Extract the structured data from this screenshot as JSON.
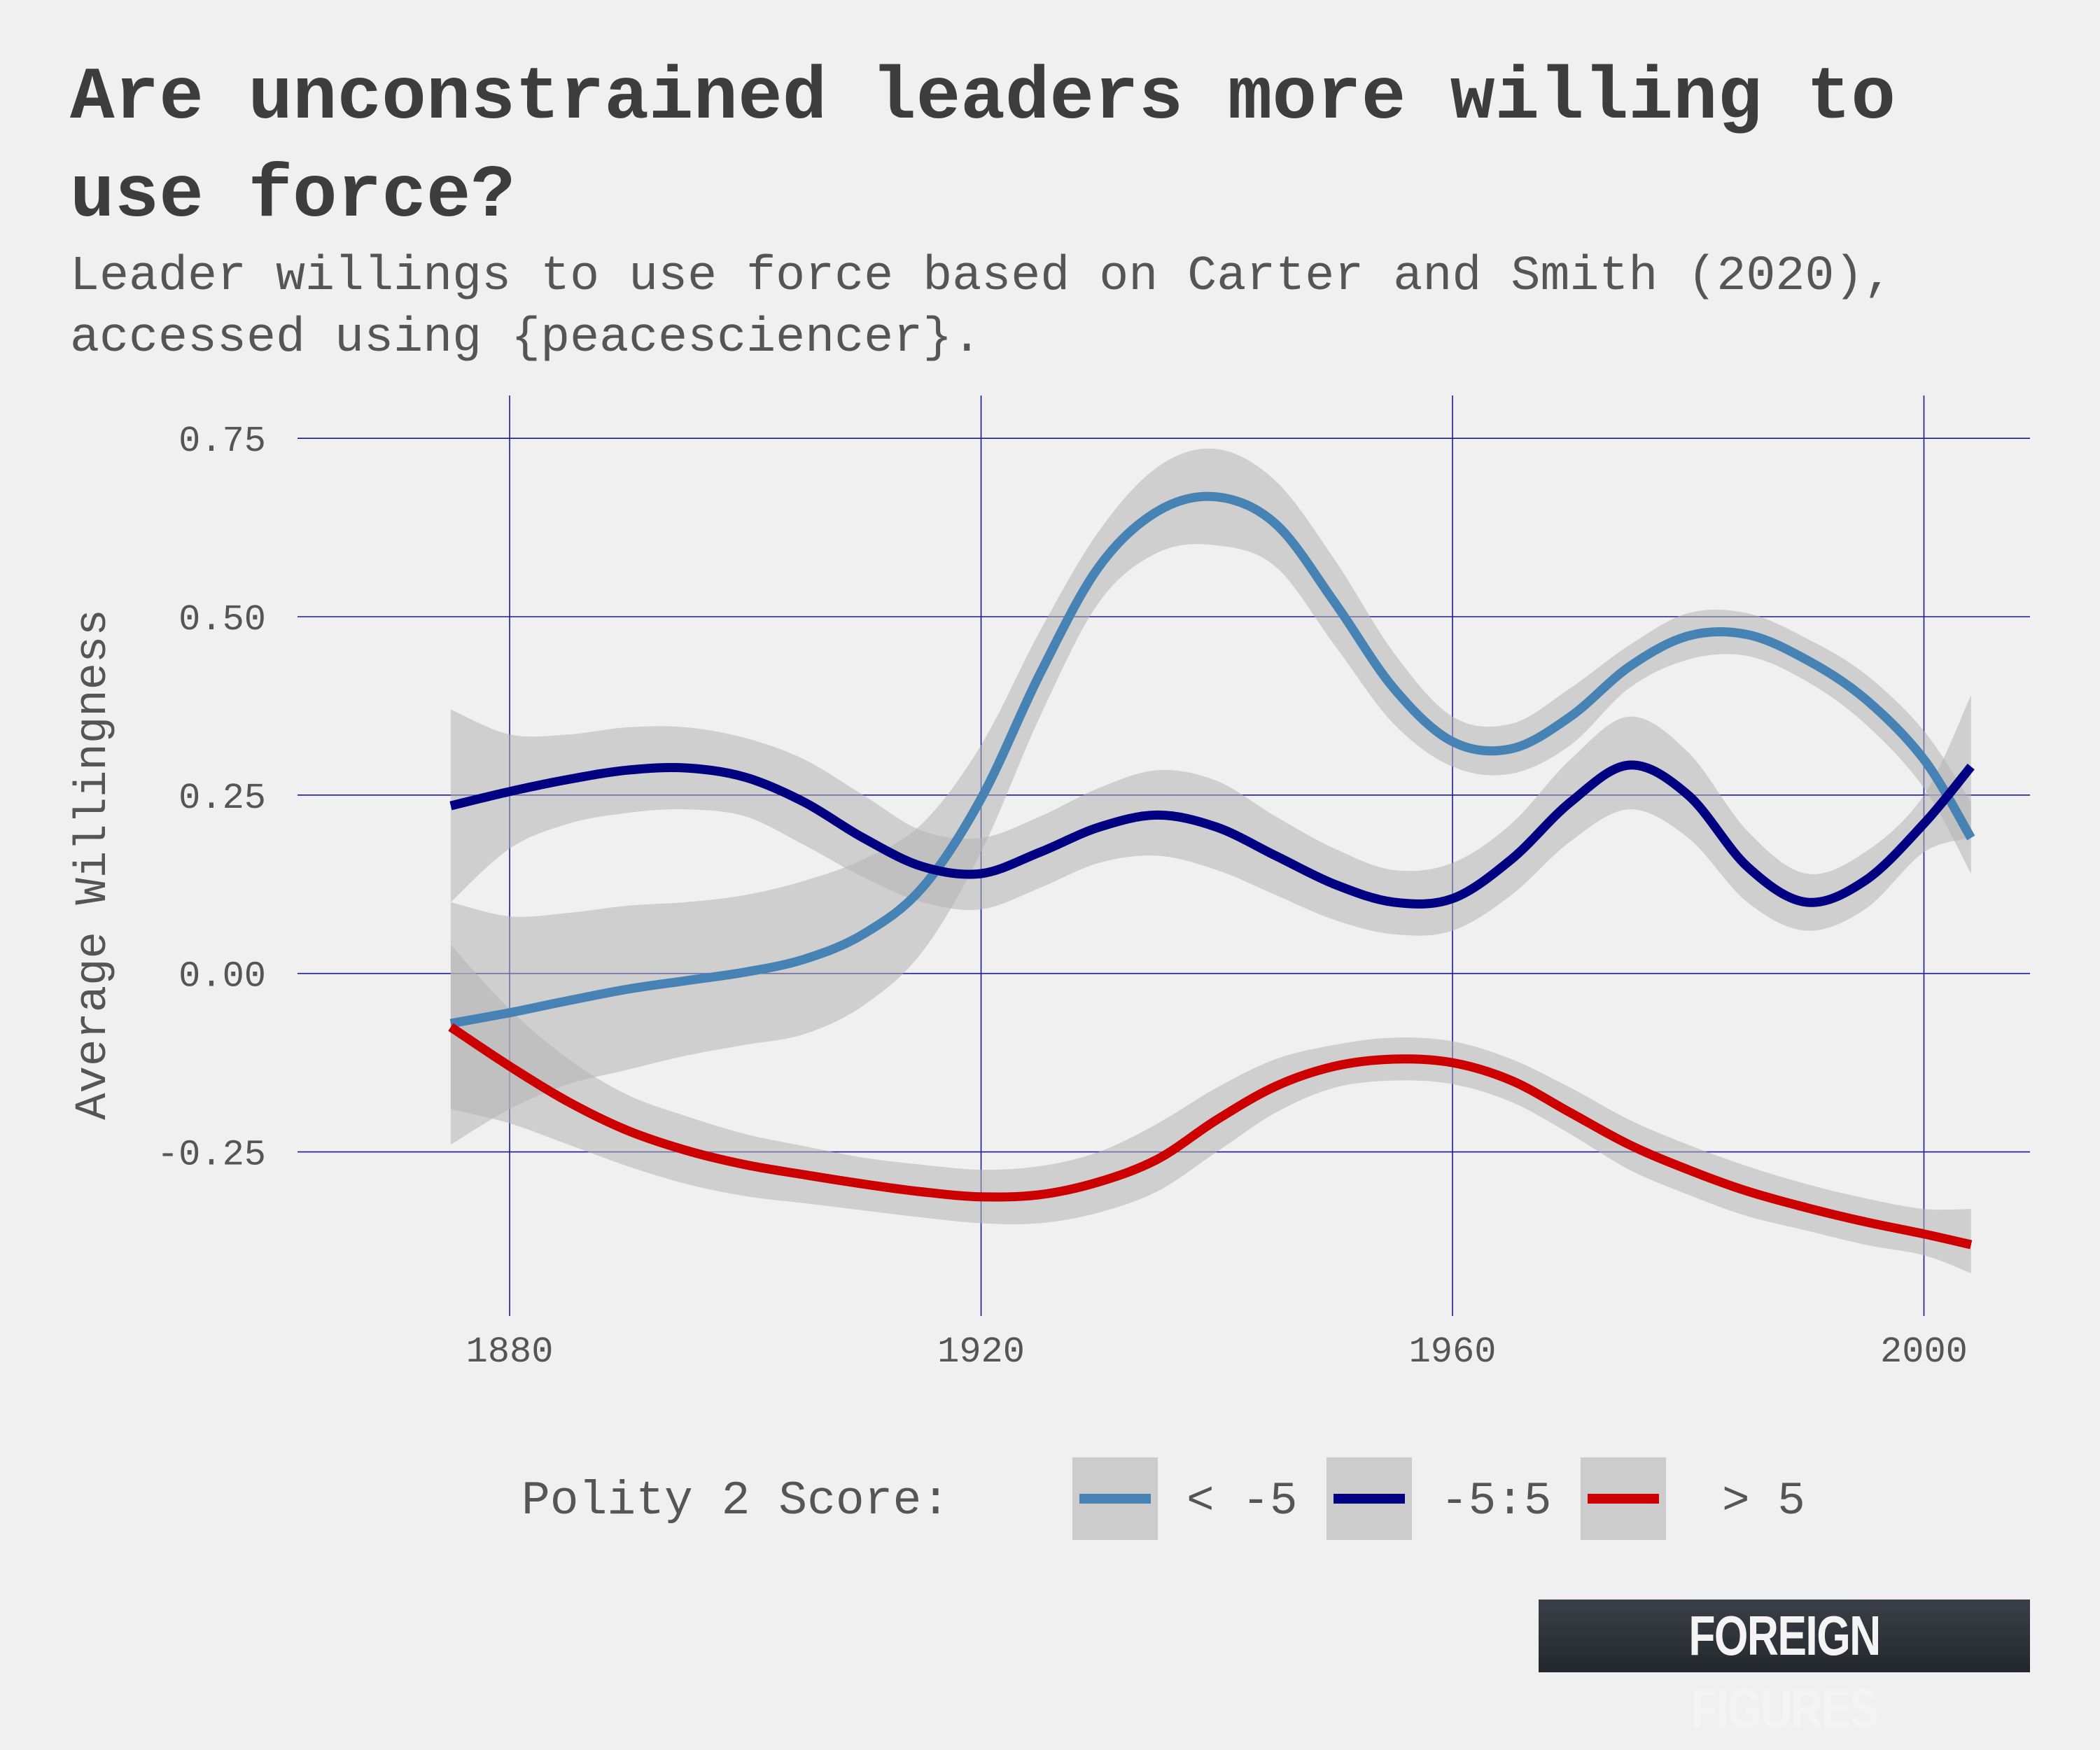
{
  "title": "Are unconstrained leaders more willing to use force?",
  "subtitle": "Leader willings to use force based on Carter and Smith (2020), accessed using {peacesciencer}.",
  "brand": "FOREIGN FIGURES",
  "chart_data": {
    "type": "line",
    "ylabel": "Average Willingness",
    "xlim": [
      1862,
      2009
    ],
    "ylim": [
      -0.48,
      0.81
    ],
    "x_ticks": [
      1880,
      1920,
      1960,
      2000
    ],
    "x_tick_labels": [
      "1880",
      "1920",
      "1960",
      "2000"
    ],
    "y_ticks": [
      -0.25,
      0,
      0.25,
      0.5,
      0.75
    ],
    "y_tick_labels": [
      "-0.25",
      "0.00",
      "0.25",
      "0.50",
      "0.75"
    ],
    "grid": true,
    "legend_title": "Polity 2 Score:",
    "legend_position": "bottom",
    "series": [
      {
        "name": "< -5",
        "color": "#4682b4",
        "points": [
          [
            1875,
            -0.07
          ],
          [
            1880,
            -0.055
          ],
          [
            1885,
            -0.038
          ],
          [
            1890,
            -0.022
          ],
          [
            1895,
            -0.01
          ],
          [
            1900,
            0.002
          ],
          [
            1905,
            0.02
          ],
          [
            1910,
            0.055
          ],
          [
            1915,
            0.12
          ],
          [
            1920,
            0.245
          ],
          [
            1925,
            0.42
          ],
          [
            1930,
            0.57
          ],
          [
            1935,
            0.648
          ],
          [
            1940,
            0.668
          ],
          [
            1945,
            0.63
          ],
          [
            1950,
            0.52
          ],
          [
            1955,
            0.4
          ],
          [
            1960,
            0.325
          ],
          [
            1965,
            0.315
          ],
          [
            1970,
            0.36
          ],
          [
            1975,
            0.43
          ],
          [
            1980,
            0.473
          ],
          [
            1985,
            0.475
          ],
          [
            1990,
            0.44
          ],
          [
            1995,
            0.385
          ],
          [
            2000,
            0.3
          ],
          [
            2004,
            0.19
          ]
        ],
        "upper": [
          [
            1875,
            0.1
          ],
          [
            1880,
            0.08
          ],
          [
            1885,
            0.085
          ],
          [
            1890,
            0.095
          ],
          [
            1895,
            0.1
          ],
          [
            1900,
            0.11
          ],
          [
            1905,
            0.13
          ],
          [
            1910,
            0.16
          ],
          [
            1915,
            0.21
          ],
          [
            1920,
            0.32
          ],
          [
            1925,
            0.48
          ],
          [
            1930,
            0.62
          ],
          [
            1935,
            0.71
          ],
          [
            1940,
            0.735
          ],
          [
            1945,
            0.69
          ],
          [
            1950,
            0.58
          ],
          [
            1955,
            0.45
          ],
          [
            1960,
            0.36
          ],
          [
            1965,
            0.35
          ],
          [
            1970,
            0.4
          ],
          [
            1975,
            0.46
          ],
          [
            1980,
            0.505
          ],
          [
            1985,
            0.505
          ],
          [
            1990,
            0.47
          ],
          [
            1995,
            0.42
          ],
          [
            2000,
            0.34
          ],
          [
            2004,
            0.24
          ]
        ],
        "lower": [
          [
            1875,
            -0.24
          ],
          [
            1880,
            -0.19
          ],
          [
            1885,
            -0.155
          ],
          [
            1890,
            -0.135
          ],
          [
            1895,
            -0.115
          ],
          [
            1900,
            -0.1
          ],
          [
            1905,
            -0.085
          ],
          [
            1910,
            -0.045
          ],
          [
            1915,
            0.03
          ],
          [
            1920,
            0.17
          ],
          [
            1925,
            0.36
          ],
          [
            1930,
            0.52
          ],
          [
            1935,
            0.59
          ],
          [
            1940,
            0.6
          ],
          [
            1945,
            0.57
          ],
          [
            1950,
            0.46
          ],
          [
            1955,
            0.35
          ],
          [
            1960,
            0.29
          ],
          [
            1965,
            0.28
          ],
          [
            1970,
            0.32
          ],
          [
            1975,
            0.4
          ],
          [
            1980,
            0.44
          ],
          [
            1985,
            0.445
          ],
          [
            1990,
            0.41
          ],
          [
            1995,
            0.35
          ],
          [
            2000,
            0.26
          ],
          [
            2004,
            0.14
          ]
        ]
      },
      {
        "name": "-5:5",
        "color": "#000080",
        "points": [
          [
            1875,
            0.235
          ],
          [
            1880,
            0.255
          ],
          [
            1885,
            0.272
          ],
          [
            1890,
            0.285
          ],
          [
            1895,
            0.288
          ],
          [
            1900,
            0.275
          ],
          [
            1905,
            0.24
          ],
          [
            1910,
            0.19
          ],
          [
            1915,
            0.15
          ],
          [
            1920,
            0.14
          ],
          [
            1925,
            0.17
          ],
          [
            1930,
            0.205
          ],
          [
            1935,
            0.222
          ],
          [
            1940,
            0.205
          ],
          [
            1945,
            0.165
          ],
          [
            1950,
            0.125
          ],
          [
            1955,
            0.1
          ],
          [
            1960,
            0.105
          ],
          [
            1965,
            0.16
          ],
          [
            1970,
            0.24
          ],
          [
            1975,
            0.292
          ],
          [
            1980,
            0.25
          ],
          [
            1985,
            0.15
          ],
          [
            1990,
            0.1
          ],
          [
            1995,
            0.13
          ],
          [
            2000,
            0.21
          ],
          [
            2004,
            0.29
          ]
        ],
        "upper": [
          [
            1875,
            0.37
          ],
          [
            1880,
            0.335
          ],
          [
            1885,
            0.335
          ],
          [
            1890,
            0.345
          ],
          [
            1895,
            0.345
          ],
          [
            1900,
            0.33
          ],
          [
            1905,
            0.3
          ],
          [
            1910,
            0.25
          ],
          [
            1915,
            0.2
          ],
          [
            1920,
            0.19
          ],
          [
            1925,
            0.22
          ],
          [
            1930,
            0.26
          ],
          [
            1935,
            0.285
          ],
          [
            1940,
            0.27
          ],
          [
            1945,
            0.22
          ],
          [
            1950,
            0.175
          ],
          [
            1955,
            0.145
          ],
          [
            1960,
            0.155
          ],
          [
            1965,
            0.21
          ],
          [
            1970,
            0.3
          ],
          [
            1975,
            0.36
          ],
          [
            1980,
            0.31
          ],
          [
            1985,
            0.2
          ],
          [
            1990,
            0.14
          ],
          [
            1995,
            0.17
          ],
          [
            2000,
            0.25
          ],
          [
            2004,
            0.39
          ]
        ],
        "lower": [
          [
            1875,
            0.1
          ],
          [
            1880,
            0.175
          ],
          [
            1885,
            0.21
          ],
          [
            1890,
            0.225
          ],
          [
            1895,
            0.23
          ],
          [
            1900,
            0.22
          ],
          [
            1905,
            0.18
          ],
          [
            1910,
            0.135
          ],
          [
            1915,
            0.1
          ],
          [
            1920,
            0.09
          ],
          [
            1925,
            0.12
          ],
          [
            1930,
            0.155
          ],
          [
            1935,
            0.165
          ],
          [
            1940,
            0.145
          ],
          [
            1945,
            0.11
          ],
          [
            1950,
            0.075
          ],
          [
            1955,
            0.055
          ],
          [
            1960,
            0.06
          ],
          [
            1965,
            0.11
          ],
          [
            1970,
            0.185
          ],
          [
            1975,
            0.23
          ],
          [
            1980,
            0.19
          ],
          [
            1985,
            0.1
          ],
          [
            1990,
            0.06
          ],
          [
            1995,
            0.09
          ],
          [
            2000,
            0.17
          ],
          [
            2004,
            0.19
          ]
        ]
      },
      {
        "name": "> 5",
        "color": "#cc0000",
        "points": [
          [
            1875,
            -0.075
          ],
          [
            1880,
            -0.13
          ],
          [
            1885,
            -0.18
          ],
          [
            1890,
            -0.22
          ],
          [
            1895,
            -0.248
          ],
          [
            1900,
            -0.268
          ],
          [
            1905,
            -0.282
          ],
          [
            1910,
            -0.295
          ],
          [
            1915,
            -0.306
          ],
          [
            1920,
            -0.313
          ],
          [
            1925,
            -0.31
          ],
          [
            1930,
            -0.292
          ],
          [
            1935,
            -0.26
          ],
          [
            1940,
            -0.205
          ],
          [
            1945,
            -0.158
          ],
          [
            1950,
            -0.13
          ],
          [
            1955,
            -0.12
          ],
          [
            1960,
            -0.125
          ],
          [
            1965,
            -0.15
          ],
          [
            1970,
            -0.195
          ],
          [
            1975,
            -0.24
          ],
          [
            1980,
            -0.275
          ],
          [
            1985,
            -0.305
          ],
          [
            1990,
            -0.328
          ],
          [
            1995,
            -0.348
          ],
          [
            2000,
            -0.365
          ],
          [
            2004,
            -0.38
          ]
        ],
        "upper": [
          [
            1875,
            0.04
          ],
          [
            1880,
            -0.05
          ],
          [
            1885,
            -0.12
          ],
          [
            1890,
            -0.17
          ],
          [
            1895,
            -0.2
          ],
          [
            1900,
            -0.225
          ],
          [
            1905,
            -0.242
          ],
          [
            1910,
            -0.258
          ],
          [
            1915,
            -0.268
          ],
          [
            1920,
            -0.275
          ],
          [
            1925,
            -0.27
          ],
          [
            1930,
            -0.25
          ],
          [
            1935,
            -0.21
          ],
          [
            1940,
            -0.16
          ],
          [
            1945,
            -0.12
          ],
          [
            1950,
            -0.1
          ],
          [
            1955,
            -0.09
          ],
          [
            1960,
            -0.095
          ],
          [
            1965,
            -0.12
          ],
          [
            1970,
            -0.16
          ],
          [
            1975,
            -0.205
          ],
          [
            1980,
            -0.24
          ],
          [
            1985,
            -0.27
          ],
          [
            1990,
            -0.295
          ],
          [
            1995,
            -0.315
          ],
          [
            2000,
            -0.33
          ],
          [
            2004,
            -0.33
          ]
        ],
        "lower": [
          [
            1875,
            -0.19
          ],
          [
            1880,
            -0.21
          ],
          [
            1885,
            -0.24
          ],
          [
            1890,
            -0.27
          ],
          [
            1895,
            -0.295
          ],
          [
            1900,
            -0.312
          ],
          [
            1905,
            -0.322
          ],
          [
            1910,
            -0.332
          ],
          [
            1915,
            -0.342
          ],
          [
            1920,
            -0.35
          ],
          [
            1925,
            -0.35
          ],
          [
            1930,
            -0.335
          ],
          [
            1935,
            -0.305
          ],
          [
            1940,
            -0.25
          ],
          [
            1945,
            -0.195
          ],
          [
            1950,
            -0.16
          ],
          [
            1955,
            -0.15
          ],
          [
            1960,
            -0.155
          ],
          [
            1965,
            -0.18
          ],
          [
            1970,
            -0.225
          ],
          [
            1975,
            -0.275
          ],
          [
            1980,
            -0.31
          ],
          [
            1985,
            -0.34
          ],
          [
            1990,
            -0.36
          ],
          [
            1995,
            -0.38
          ],
          [
            2000,
            -0.395
          ],
          [
            2004,
            -0.42
          ]
        ]
      }
    ]
  }
}
